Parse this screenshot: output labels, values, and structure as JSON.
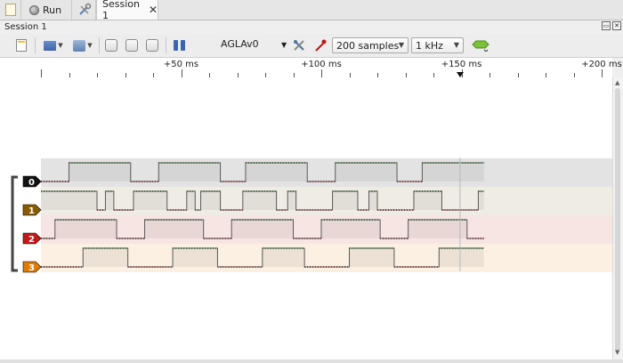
{
  "tabs": {
    "run_label": "Run",
    "session_label": "Session 1"
  },
  "window": {
    "title": "Session 1"
  },
  "toolbar": {
    "device": "AGLAv0",
    "samples": "200  samples",
    "rate": "1 kHz"
  },
  "ruler": {
    "labels": [
      {
        "text": "+50 ms",
        "t": 50
      },
      {
        "text": "+100 ms",
        "t": 100
      },
      {
        "text": "+150 ms",
        "t": 150
      },
      {
        "text": "+200 ms",
        "t": 200
      }
    ],
    "marker_t": 149.5,
    "cursor_t": 149.5
  },
  "channels": [
    {
      "label": "0",
      "color": "#111111",
      "band": "#e3e3e3",
      "edges": [
        0,
        10,
        32,
        42,
        64,
        73,
        95,
        105,
        127,
        136,
        158
      ],
      "start_level": 0
    },
    {
      "label": "1",
      "color": "#8a5a00",
      "band": "#efece4",
      "edges": [
        0,
        20,
        23,
        26,
        33,
        45,
        52,
        55,
        57,
        64,
        72,
        84,
        88,
        91,
        104,
        113,
        117,
        120,
        133,
        143,
        156,
        158
      ],
      "start_level": 1
    },
    {
      "label": "2",
      "color": "#c11a1a",
      "band": "#f7e5e3",
      "edges": [
        0,
        5,
        27,
        37,
        58,
        68,
        90,
        100,
        121,
        131,
        152,
        158
      ],
      "start_level": 0
    },
    {
      "label": "3",
      "color": "#e07a00",
      "band": "#fbf0e2",
      "edges": [
        0,
        15,
        31,
        47,
        63,
        79,
        94,
        110,
        126,
        142,
        158
      ],
      "start_level": 0
    }
  ]
}
